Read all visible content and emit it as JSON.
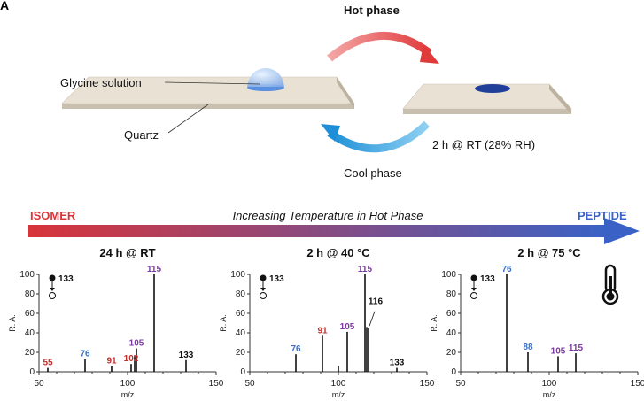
{
  "panel_label": "A",
  "schematic": {
    "hot_phase_label": "Hot phase",
    "cool_phase_label": "Cool phase",
    "glycine_label": "Glycine solution",
    "quartz_label": "Quartz",
    "condition_label": "2 h @ RT (28% RH)"
  },
  "gradient_bar": {
    "left_label": "ISOMER",
    "center_label": "Increasing Temperature in Hot Phase",
    "right_label": "PEPTIDE",
    "left_color": "#d8343a",
    "right_color": "#3a62c6"
  },
  "colors": {
    "red": "#c0302e",
    "blue": "#3a6fc6",
    "purple": "#7a3aa0",
    "black": "#111111",
    "hot_arrow": "#e03a3a",
    "cool_arrow": "#2a9be0"
  },
  "thermometer_icon": "thermometer-icon",
  "chart_data": [
    {
      "type": "bar",
      "title": "24 h @ RT",
      "xlabel": "m/z",
      "ylabel": "R. A.",
      "xlim": [
        50,
        150
      ],
      "ylim": [
        0,
        100
      ],
      "x_ticks": [
        "50",
        "100",
        "150"
      ],
      "y_ticks": [
        "0",
        "20",
        "40",
        "60",
        "80",
        "100"
      ],
      "legend_marker": "133",
      "peaks": [
        {
          "x": 55,
          "y": 4
        },
        {
          "x": 76,
          "y": 13
        },
        {
          "x": 91,
          "y": 6
        },
        {
          "x": 102,
          "y": 8
        },
        {
          "x": 104,
          "y": 17
        },
        {
          "x": 105,
          "y": 24
        },
        {
          "x": 115,
          "y": 100
        },
        {
          "x": 133,
          "y": 12
        }
      ],
      "labels": [
        {
          "text": "55",
          "x": 55,
          "y": 4,
          "color": "red"
        },
        {
          "text": "76",
          "x": 76,
          "y": 13,
          "color": "blue"
        },
        {
          "text": "91",
          "x": 91,
          "y": 6,
          "color": "red"
        },
        {
          "text": "102",
          "x": 102,
          "y": 8,
          "color": "red"
        },
        {
          "text": "105",
          "x": 105,
          "y": 24,
          "color": "purple"
        },
        {
          "text": "115",
          "x": 115,
          "y": 100,
          "color": "purple"
        },
        {
          "text": "133",
          "x": 133,
          "y": 12,
          "color": "black"
        }
      ]
    },
    {
      "type": "bar",
      "title": "2 h @ 40 °C",
      "xlabel": "m/z",
      "ylabel": "R. A.",
      "xlim": [
        50,
        150
      ],
      "ylim": [
        0,
        100
      ],
      "x_ticks": [
        "50",
        "100",
        "150"
      ],
      "y_ticks": [
        "0",
        "20",
        "40",
        "60",
        "80",
        "100"
      ],
      "legend_marker": "133",
      "peaks": [
        {
          "x": 76,
          "y": 18
        },
        {
          "x": 91,
          "y": 37
        },
        {
          "x": 100,
          "y": 6
        },
        {
          "x": 105,
          "y": 41
        },
        {
          "x": 115,
          "y": 100
        },
        {
          "x": 116,
          "y": 46
        },
        {
          "x": 117,
          "y": 45
        },
        {
          "x": 133,
          "y": 4
        }
      ],
      "labels": [
        {
          "text": "76",
          "x": 76,
          "y": 18,
          "color": "blue"
        },
        {
          "text": "91",
          "x": 91,
          "y": 37,
          "color": "red"
        },
        {
          "text": "105",
          "x": 105,
          "y": 41,
          "color": "purple"
        },
        {
          "text": "115",
          "x": 115,
          "y": 100,
          "color": "purple"
        },
        {
          "text": "116",
          "x": 121,
          "y": 67,
          "color": "black"
        },
        {
          "text": "133",
          "x": 133,
          "y": 4,
          "color": "black"
        }
      ]
    },
    {
      "type": "bar",
      "title": "2 h @ 75 °C",
      "xlabel": "m/z",
      "ylabel": "R. A.",
      "xlim": [
        50,
        150
      ],
      "ylim": [
        0,
        100
      ],
      "x_ticks": [
        "50",
        "100",
        "150"
      ],
      "y_ticks": [
        "0",
        "20",
        "40",
        "60",
        "80",
        "100"
      ],
      "legend_marker": "133",
      "peaks": [
        {
          "x": 76,
          "y": 100
        },
        {
          "x": 88,
          "y": 20
        },
        {
          "x": 105,
          "y": 16
        },
        {
          "x": 115,
          "y": 19
        }
      ],
      "labels": [
        {
          "text": "76",
          "x": 76,
          "y": 100,
          "color": "blue"
        },
        {
          "text": "88",
          "x": 88,
          "y": 20,
          "color": "blue"
        },
        {
          "text": "105",
          "x": 105,
          "y": 16,
          "color": "purple"
        },
        {
          "text": "115",
          "x": 115,
          "y": 19,
          "color": "purple"
        }
      ]
    }
  ]
}
